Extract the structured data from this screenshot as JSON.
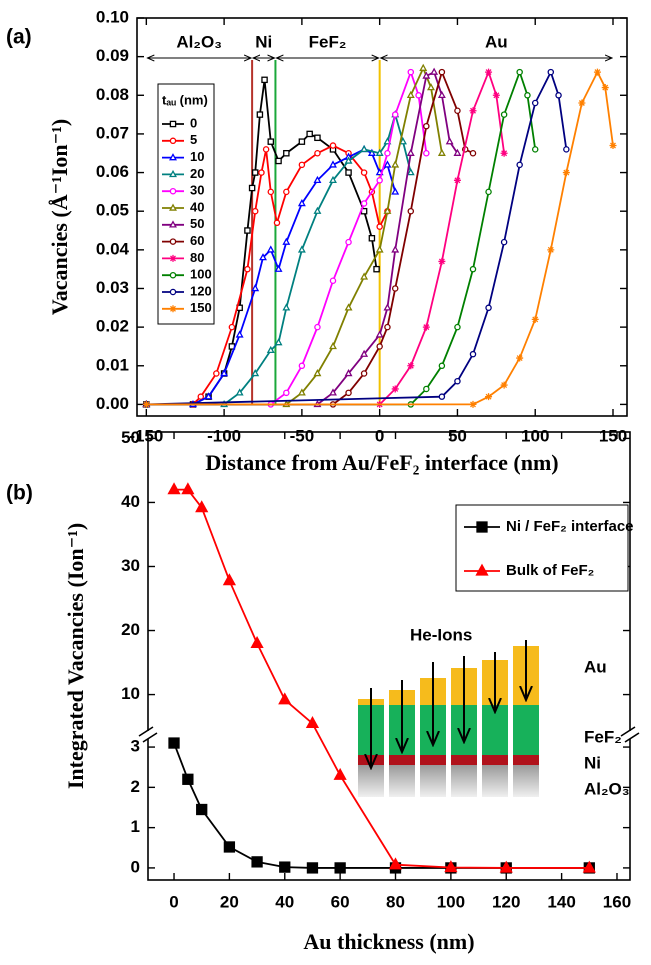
{
  "chart_data": [
    {
      "type": "line",
      "panel_label": "(a)",
      "x_label": "Distance from Au/FeF₂ interface (nm)",
      "y_label": "Vacancies (Å⁻¹Ion⁻¹)",
      "xlim": [
        -156,
        159
      ],
      "ylim": [
        -0.003,
        0.1
      ],
      "xticks": [
        -150,
        -100,
        -50,
        0,
        50,
        100,
        150
      ],
      "yticks": [
        {
          "value": 0,
          "label": "0.00"
        },
        {
          "value": 0.01,
          "label": "0.01"
        },
        {
          "value": 0.02,
          "label": "0.02"
        },
        {
          "value": 0.03,
          "label": "0.03"
        },
        {
          "value": 0.04,
          "label": "0.04"
        },
        {
          "value": 0.05,
          "label": "0.05"
        },
        {
          "value": 0.06,
          "label": "0.06"
        },
        {
          "value": 0.07,
          "label": "0.07"
        },
        {
          "value": 0.08,
          "label": "0.08"
        },
        {
          "value": 0.09,
          "label": "0.09"
        },
        {
          "value": 0.1,
          "label": "0.10"
        }
      ],
      "legend_title": "tₐᵤ (nm)",
      "regions": [
        {
          "label": "Al₂O₃",
          "from": -150,
          "to": -82
        },
        {
          "label": "Ni",
          "from": -82,
          "to": -67
        },
        {
          "label": "FeF₂",
          "from": -67,
          "to": 0
        },
        {
          "label": "Au",
          "from": 0,
          "to": 150
        }
      ],
      "interfaces": [
        {
          "x": -82,
          "color": "#b5322a"
        },
        {
          "x": -67,
          "color": "#1aa83a"
        },
        {
          "x": 0,
          "color": "#f2c200"
        }
      ],
      "series": [
        {
          "name": "0",
          "color": "#000000",
          "marker": "square",
          "x": [
            -150,
            -120,
            -110,
            -100,
            -95,
            -90,
            -85,
            -82,
            -80,
            -77,
            -74,
            -70,
            -65,
            -60,
            -50,
            -45,
            -40,
            -30,
            -20,
            -10,
            -5,
            -2
          ],
          "values": [
            0,
            0,
            0.002,
            0.008,
            0.015,
            0.025,
            0.045,
            0.056,
            0.06,
            0.075,
            0.084,
            0.068,
            0.063,
            0.065,
            0.068,
            0.07,
            0.069,
            0.066,
            0.06,
            0.05,
            0.043,
            0.035
          ]
        },
        {
          "name": "5",
          "color": "#ff0000",
          "marker": "circle",
          "x": [
            -150,
            -120,
            -115,
            -105,
            -95,
            -85,
            -80,
            -76,
            -73,
            -70,
            -66,
            -60,
            -50,
            -40,
            -30,
            -20,
            -10,
            -5,
            0,
            5
          ],
          "values": [
            0,
            0,
            0.002,
            0.008,
            0.02,
            0.035,
            0.05,
            0.06,
            0.066,
            0.055,
            0.047,
            0.055,
            0.062,
            0.065,
            0.067,
            0.065,
            0.06,
            0.055,
            0.046,
            0.05
          ]
        },
        {
          "name": "10",
          "color": "#0000ff",
          "marker": "triangle",
          "x": [
            -150,
            -120,
            -110,
            -100,
            -90,
            -80,
            -75,
            -70,
            -65,
            -60,
            -50,
            -40,
            -30,
            -20,
            -10,
            -5,
            0,
            5,
            10
          ],
          "values": [
            0,
            0,
            0.002,
            0.008,
            0.018,
            0.03,
            0.038,
            0.04,
            0.035,
            0.042,
            0.052,
            0.058,
            0.062,
            0.064,
            0.066,
            0.065,
            0.06,
            0.062,
            0.055
          ]
        },
        {
          "name": "20",
          "color": "#008080",
          "marker": "triangle",
          "x": [
            -150,
            -100,
            -90,
            -80,
            -70,
            -65,
            -60,
            -50,
            -40,
            -30,
            -20,
            -10,
            0,
            5,
            10,
            15,
            20
          ],
          "values": [
            0,
            0,
            0.003,
            0.008,
            0.014,
            0.016,
            0.025,
            0.04,
            0.05,
            0.058,
            0.063,
            0.066,
            0.065,
            0.068,
            0.075,
            0.068,
            0.06
          ]
        },
        {
          "name": "30",
          "color": "#ff00ff",
          "marker": "circle",
          "x": [
            -150,
            -70,
            -60,
            -50,
            -40,
            -30,
            -20,
            -10,
            0,
            5,
            10,
            20,
            25,
            30
          ],
          "values": [
            0,
            0,
            0.003,
            0.01,
            0.02,
            0.032,
            0.042,
            0.052,
            0.058,
            0.065,
            0.075,
            0.086,
            0.08,
            0.065
          ]
        },
        {
          "name": "40",
          "color": "#808000",
          "marker": "triangle",
          "x": [
            -150,
            -60,
            -50,
            -40,
            -30,
            -20,
            -10,
            0,
            5,
            10,
            20,
            28,
            33,
            40
          ],
          "values": [
            0,
            0,
            0.003,
            0.008,
            0.015,
            0.025,
            0.033,
            0.04,
            0.05,
            0.062,
            0.08,
            0.087,
            0.082,
            0.065
          ]
        },
        {
          "name": "50",
          "color": "#800080",
          "marker": "triangle",
          "x": [
            -150,
            -40,
            -30,
            -20,
            -10,
            0,
            5,
            10,
            20,
            30,
            35,
            40,
            45,
            50
          ],
          "values": [
            0,
            0,
            0.003,
            0.008,
            0.013,
            0.018,
            0.025,
            0.04,
            0.065,
            0.085,
            0.086,
            0.08,
            0.068,
            0.065
          ]
        },
        {
          "name": "60",
          "color": "#800000",
          "marker": "circle",
          "x": [
            -150,
            -30,
            -20,
            -10,
            0,
            5,
            10,
            20,
            30,
            40,
            50,
            55,
            60
          ],
          "values": [
            0,
            0,
            0.003,
            0.008,
            0.015,
            0.02,
            0.03,
            0.05,
            0.072,
            0.086,
            0.076,
            0.066,
            0.065
          ]
        },
        {
          "name": "80",
          "color": "#ff0080",
          "marker": "star",
          "x": [
            -150,
            0,
            10,
            20,
            30,
            40,
            50,
            60,
            70,
            75,
            80
          ],
          "values": [
            0,
            0,
            0.004,
            0.01,
            0.02,
            0.037,
            0.058,
            0.076,
            0.086,
            0.08,
            0.065
          ]
        },
        {
          "name": "100",
          "color": "#008000",
          "marker": "circle",
          "x": [
            -150,
            20,
            30,
            40,
            50,
            60,
            70,
            80,
            90,
            95,
            100
          ],
          "values": [
            0,
            0,
            0.004,
            0.01,
            0.02,
            0.035,
            0.055,
            0.075,
            0.086,
            0.08,
            0.066
          ]
        },
        {
          "name": "120",
          "color": "#000080",
          "marker": "circle",
          "x": [
            -150,
            40,
            50,
            60,
            70,
            80,
            90,
            100,
            110,
            115,
            120
          ],
          "values": [
            0,
            0.002,
            0.006,
            0.013,
            0.025,
            0.042,
            0.062,
            0.078,
            0.086,
            0.08,
            0.066
          ]
        },
        {
          "name": "150",
          "color": "#ff8000",
          "marker": "star",
          "x": [
            -150,
            60,
            70,
            80,
            90,
            100,
            110,
            120,
            130,
            140,
            145,
            150
          ],
          "values": [
            0,
            0,
            0.002,
            0.005,
            0.012,
            0.022,
            0.04,
            0.06,
            0.078,
            0.086,
            0.082,
            0.067
          ]
        }
      ]
    },
    {
      "type": "line",
      "panel_label": "(b)",
      "x_label": "Au thickness (nm)",
      "y_label": "Integrated Vacancies (Ion⁻¹)",
      "xlim": [
        -9.4,
        164.7
      ],
      "xticks": [
        0,
        20,
        40,
        60,
        80,
        100,
        120,
        140,
        160
      ],
      "y_segments": [
        {
          "ylim": [
            -0.3,
            3.25
          ],
          "yticks": [
            0,
            1,
            2,
            3
          ]
        },
        {
          "ylim": [
            4,
            51
          ],
          "yticks": [
            10,
            20,
            30,
            40,
            50
          ]
        }
      ],
      "series": [
        {
          "name": "Ni / FeF₂ interface",
          "color": "#000000",
          "marker": "square",
          "filled": true,
          "x": [
            0,
            5,
            10,
            20,
            30,
            40,
            50,
            60,
            80,
            100,
            120,
            150
          ],
          "values": [
            3.1,
            2.2,
            1.45,
            0.52,
            0.15,
            0.02,
            0,
            0,
            0,
            0,
            0,
            0
          ]
        },
        {
          "name": "Bulk of FeF₂",
          "color": "#ff0000",
          "marker": "triangle",
          "filled": true,
          "x": [
            0,
            5,
            10,
            20,
            30,
            40,
            50,
            60,
            80,
            100,
            120,
            150
          ],
          "values": [
            42,
            42,
            39.2,
            27.8,
            18,
            9.2,
            5.5,
            2.3,
            0.08,
            0.01,
            0,
            0
          ]
        }
      ],
      "inset": {
        "beam_label": "He-Ions",
        "layers": [
          "Au",
          "FeF₂",
          "Ni",
          "Al₂O₃"
        ]
      }
    }
  ]
}
